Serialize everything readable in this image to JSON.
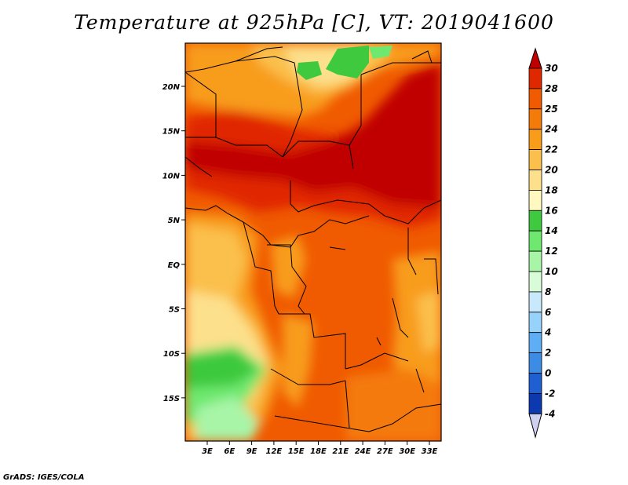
{
  "title": "Temperature at 925hPa [C], VT: 2019041600",
  "credit": "GrADS: IGES/COLA",
  "map": {
    "lat_ticks": [
      "20N",
      "15N",
      "10N",
      "5N",
      "EQ",
      "5S",
      "10S",
      "15S"
    ],
    "lon_ticks": [
      "3E",
      "6E",
      "9E",
      "12E",
      "15E",
      "18E",
      "21E",
      "24E",
      "27E",
      "30E",
      "33E"
    ]
  },
  "colorbar": {
    "labels": [
      "30",
      "28",
      "25",
      "24",
      "22",
      "20",
      "18",
      "16",
      "14",
      "12",
      "10",
      "8",
      "6",
      "4",
      "2",
      "0",
      "-2",
      "-4"
    ],
    "colors": [
      "#c00000",
      "#e02800",
      "#f05a00",
      "#f47a0a",
      "#f89c1a",
      "#fbc04c",
      "#fde08c",
      "#fff8c0",
      "#3ec93e",
      "#6ee86e",
      "#a8f5a8",
      "#d8fbd8",
      "#c8e8fb",
      "#96d2fa",
      "#5eaef5",
      "#3c8ce6",
      "#1e5fd2",
      "#0c38b0",
      "#0a1a78",
      "#d0d0f0"
    ]
  }
}
